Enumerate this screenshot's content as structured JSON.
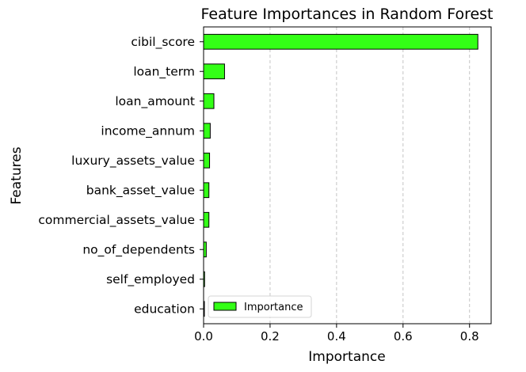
{
  "chart_data": {
    "type": "bar",
    "orientation": "horizontal",
    "title": "Feature Importances in Random Forest",
    "xlabel": "Importance",
    "ylabel": "Features",
    "xlim": [
      0,
      0.865
    ],
    "xticks": [
      0.0,
      0.2,
      0.4,
      0.6,
      0.8
    ],
    "xtick_labels": [
      "0.0",
      "0.2",
      "0.4",
      "0.6",
      "0.8"
    ],
    "grid": "x-dashed",
    "legend": {
      "label": "Importance",
      "placement": "lower-left"
    },
    "categories": [
      "cibil_score",
      "loan_term",
      "loan_amount",
      "income_annum",
      "luxury_assets_value",
      "bank_asset_value",
      "commercial_assets_value",
      "no_of_dependents",
      "self_employed",
      "education"
    ],
    "values": [
      0.825,
      0.063,
      0.031,
      0.02,
      0.018,
      0.016,
      0.016,
      0.008,
      0.003,
      0.002
    ],
    "colors": {
      "bar_fill": "#33ff16",
      "bar_edge": "#000000",
      "grid": "#c4c4c4"
    }
  }
}
